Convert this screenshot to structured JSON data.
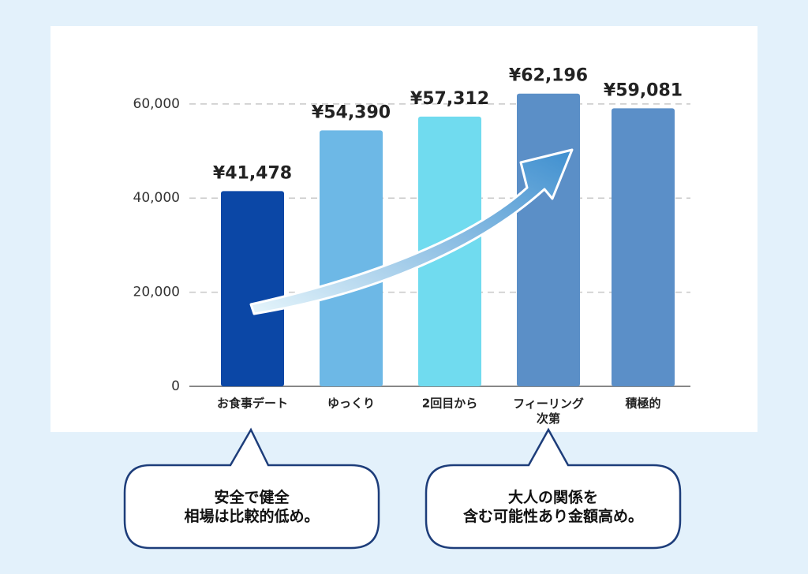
{
  "chart_data": {
    "type": "bar",
    "categories": [
      "お食事デート",
      "ゆっくり",
      "2回目から",
      "フィーリング\n次第",
      "積極的"
    ],
    "values": [
      41478,
      54390,
      57312,
      62196,
      59081
    ],
    "value_labels": [
      "¥41,478",
      "¥54,390",
      "¥57,312",
      "¥62,196",
      "¥59,081"
    ],
    "colors": [
      "#0b47a6",
      "#6db8e6",
      "#70dbef",
      "#5b8fc7",
      "#5b8fc8"
    ],
    "ylim": [
      0,
      65000
    ],
    "yticks": [
      0,
      {
        "value": 20000,
        "label": "20,000"
      },
      {
        "value": 40000,
        "label": "40,000"
      },
      {
        "value": 60000,
        "label": "60,000"
      }
    ],
    "grid": true,
    "annotations": [
      "安全で健全\n相場は比較的低め。",
      "大人の関係を\n含む可能性あり金額高め。"
    ]
  }
}
